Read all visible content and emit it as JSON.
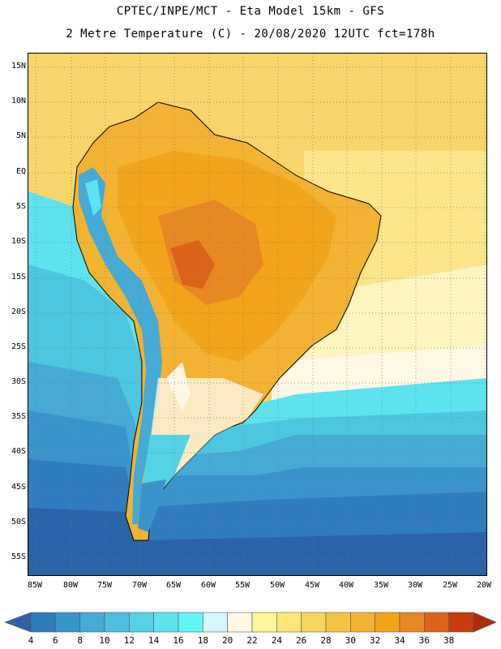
{
  "header": {
    "line1": "CPTEC/INPE/MCT -  Eta Model 15km - GFS",
    "line2": "2 Metre Temperature (C) - 20/08/2020 12UTC fct=178h"
  },
  "map": {
    "lat_labels": [
      "15N",
      "10N",
      "5N",
      "EQ",
      "5S",
      "10S",
      "15S",
      "20S",
      "25S",
      "30S",
      "35S",
      "40S",
      "45S",
      "50S",
      "55S"
    ],
    "lon_labels": [
      "85W",
      "80W",
      "75W",
      "70W",
      "65W",
      "60W",
      "55W",
      "50W",
      "45W",
      "40W",
      "35W",
      "30W",
      "25W",
      "20W"
    ],
    "grid": "dotted",
    "region": "South America"
  },
  "colorbar": {
    "labels": [
      "4",
      "6",
      "8",
      "10",
      "12",
      "14",
      "16",
      "18",
      "20",
      "22",
      "24",
      "26",
      "28",
      "30",
      "32",
      "34",
      "36",
      "38"
    ],
    "colors": [
      "#2a63a8",
      "#2f7cbf",
      "#3a94cc",
      "#45aad6",
      "#4cc0de",
      "#54d2e6",
      "#5ce3ee",
      "#62f5f8",
      "#d5f6fb",
      "#fdf7e4",
      "#fef69a",
      "#fde877",
      "#f9d55c",
      "#f5c447",
      "#f3b232",
      "#f2a41b",
      "#e88823",
      "#dc6419",
      "#c73d0e",
      "#b12b09"
    ]
  },
  "colors": {
    "sea_cold": "#2a63a8",
    "sea_mid": "#3f93cd",
    "sea_cool": "#4cc7df",
    "sea_warm": "#fdf7e4",
    "tropics": "#f6cc55",
    "land_hot": "#f0a830",
    "land_hotter": "#e88a26",
    "andes": "#45aad6"
  }
}
